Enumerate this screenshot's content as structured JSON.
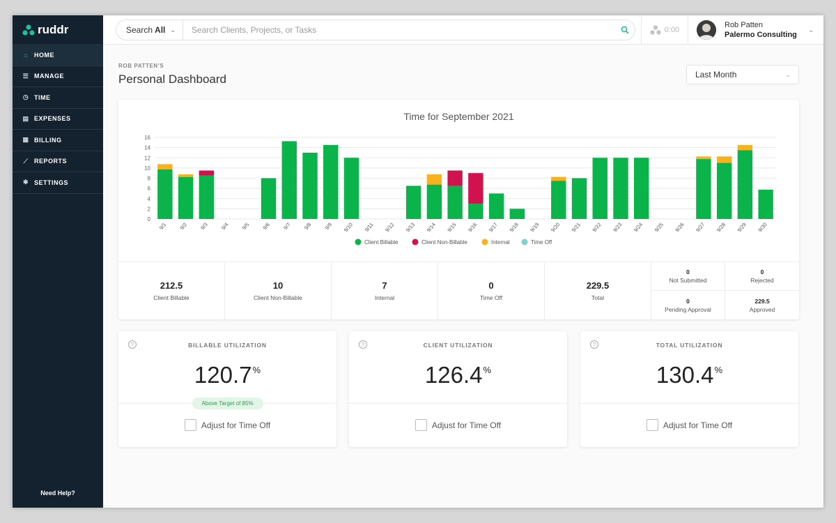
{
  "app": {
    "name": "ruddr"
  },
  "sidebar": {
    "items": [
      {
        "label": "HOME",
        "icon": "home-icon",
        "active": true
      },
      {
        "label": "MANAGE",
        "icon": "list-icon",
        "active": false
      },
      {
        "label": "TIME",
        "icon": "clock-icon",
        "active": false
      },
      {
        "label": "EXPENSES",
        "icon": "receipt-icon",
        "active": false
      },
      {
        "label": "BILLING",
        "icon": "document-icon",
        "active": false
      },
      {
        "label": "REPORTS",
        "icon": "chart-icon",
        "active": false
      },
      {
        "label": "SETTINGS",
        "icon": "gear-icon",
        "active": false
      }
    ],
    "help_label": "Need Help?"
  },
  "topbar": {
    "search_scope_prefix": "Search",
    "search_scope_value": "All",
    "search_placeholder": "Search Clients, Projects, or Tasks",
    "timer_value": "0:00",
    "user_name": "Rob Patten",
    "user_org": "Palermo Consulting"
  },
  "page": {
    "owner_label": "ROB PATTEN'S",
    "title": "Personal Dashboard",
    "range_value": "Last Month"
  },
  "colors": {
    "client_billable": "#0bb34b",
    "client_non_billable": "#d1124f",
    "internal": "#f7b21d",
    "time_off": "#7fd3c9",
    "accent": "#1fbf9b",
    "sidebar_bg": "#14222f"
  },
  "chart_data": {
    "type": "bar",
    "stacked": true,
    "title": "Time for September 2021",
    "categories": [
      "9/1",
      "9/2",
      "9/3",
      "9/4",
      "9/5",
      "9/6",
      "9/7",
      "9/8",
      "9/9",
      "9/10",
      "9/11",
      "9/12",
      "9/13",
      "9/14",
      "9/15",
      "9/16",
      "9/17",
      "9/18",
      "9/19",
      "9/20",
      "9/21",
      "9/22",
      "9/23",
      "9/24",
      "9/25",
      "9/26",
      "9/27",
      "9/28",
      "9/29",
      "9/30"
    ],
    "series": [
      {
        "name": "Client Billable",
        "values": [
          9.75,
          8.25,
          8.5,
          0,
          0,
          8,
          15.25,
          13,
          14.5,
          12,
          0,
          0,
          6.5,
          6.75,
          6.5,
          3,
          5,
          2,
          0,
          7.5,
          8,
          12,
          12,
          12,
          0,
          0,
          11.75,
          11,
          13.5,
          5.75
        ]
      },
      {
        "name": "Client Non-Billable",
        "values": [
          0,
          0,
          1,
          0,
          0,
          0,
          0,
          0,
          0,
          0,
          0,
          0,
          0,
          0,
          3,
          6,
          0,
          0,
          0,
          0,
          0,
          0,
          0,
          0,
          0,
          0,
          0,
          0,
          0,
          0
        ]
      },
      {
        "name": "Internal",
        "values": [
          1,
          0.5,
          0,
          0,
          0,
          0,
          0,
          0,
          0,
          0,
          0,
          0,
          0,
          2,
          0,
          0,
          0,
          0,
          0,
          0.75,
          0,
          0,
          0,
          0,
          0,
          0,
          0.5,
          1.25,
          1,
          0
        ]
      },
      {
        "name": "Time Off",
        "values": [
          0,
          0,
          0,
          0,
          0,
          0,
          0,
          0,
          0,
          0,
          0,
          0,
          0,
          0,
          0,
          0,
          0,
          0,
          0,
          0,
          0,
          0,
          0,
          0,
          0,
          0,
          0,
          0,
          0,
          0
        ]
      }
    ],
    "ylim": [
      0,
      16
    ],
    "yticks": [
      "0",
      "2",
      "4",
      "6",
      "8",
      "10",
      "12",
      "14",
      "16"
    ],
    "grid": true,
    "legend": "bottom"
  },
  "stats": {
    "client_billable": {
      "value": "212.5",
      "label": "Client Billable"
    },
    "client_non_billable": {
      "value": "10",
      "label": "Client Non-Billable"
    },
    "internal": {
      "value": "7",
      "label": "Internal"
    },
    "time_off": {
      "value": "0",
      "label": "Time Off"
    },
    "total": {
      "value": "229.5",
      "label": "Total"
    },
    "not_submitted": {
      "value": "0",
      "label": "Not Submitted"
    },
    "rejected": {
      "value": "0",
      "label": "Rejected"
    },
    "pending_approval": {
      "value": "0",
      "label": "Pending Approval"
    },
    "approved": {
      "value": "229.5",
      "label": "Approved"
    }
  },
  "utilization": [
    {
      "title": "BILLABLE UTILIZATION",
      "value": "120.7",
      "unit": "%",
      "badge": "Above Target of 85%",
      "adjust_label": "Adjust for Time Off"
    },
    {
      "title": "CLIENT UTILIZATION",
      "value": "126.4",
      "unit": "%",
      "adjust_label": "Adjust for Time Off"
    },
    {
      "title": "TOTAL UTILIZATION",
      "value": "130.4",
      "unit": "%",
      "adjust_label": "Adjust for Time Off"
    }
  ]
}
